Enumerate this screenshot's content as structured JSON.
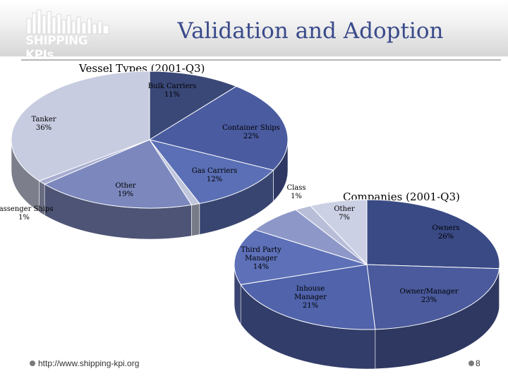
{
  "slide": {
    "title": "Validation and Adoption",
    "logo_text": "SHIPPING KPIs",
    "footer_url": "http://www.shipping-kpi.org",
    "page_number": "8"
  },
  "chart_data": [
    {
      "type": "pie",
      "title": "Vessel Types (2001-Q3)",
      "slices": [
        {
          "label": "Bulk Carriers",
          "value": 11,
          "text": "11%",
          "color": "#3a4878"
        },
        {
          "label": "Container Ships",
          "value": 22,
          "text": "22%",
          "color": "#4a5ba0"
        },
        {
          "label": "Gas Carriers",
          "value": 12,
          "text": "12%",
          "color": "#5a6fb5"
        },
        {
          "label": "Class",
          "value": 1,
          "text": "1%",
          "color": "#c0c6dc"
        },
        {
          "label": "Other",
          "value": 19,
          "text": "19%",
          "color": "#7c88bd"
        },
        {
          "label": "Passenger Ships",
          "value": 1,
          "text": "1%",
          "color": "#a8aed0"
        },
        {
          "label": "Tanker",
          "value": 36,
          "text": "36%",
          "color": "#c8cce0"
        }
      ]
    },
    {
      "type": "pie",
      "title": "Companies (2001-Q3)",
      "slices": [
        {
          "label": "Owners",
          "value": 26,
          "text": "26%",
          "color": "#3a4a85"
        },
        {
          "label": "Owner/Manager",
          "value": 23,
          "text": "23%",
          "color": "#4a5a9c"
        },
        {
          "label": "Inhouse Manager",
          "value": 21,
          "text": "21%",
          "color": "#5063ab"
        },
        {
          "label": "Third Party Manager",
          "value": 14,
          "text": "14%",
          "color": "#5d70b8"
        },
        {
          "label": "Other",
          "value": 7,
          "text": "7%",
          "color": "#8e98c8"
        },
        {
          "label": "",
          "value": 2,
          "text": "",
          "color": "#b8bed8"
        },
        {
          "label": "",
          "value": 7,
          "text": "",
          "color": "#ccd0e4"
        }
      ]
    }
  ],
  "colors": {
    "title": "#3a4a8a",
    "accent": "#3a4878"
  }
}
